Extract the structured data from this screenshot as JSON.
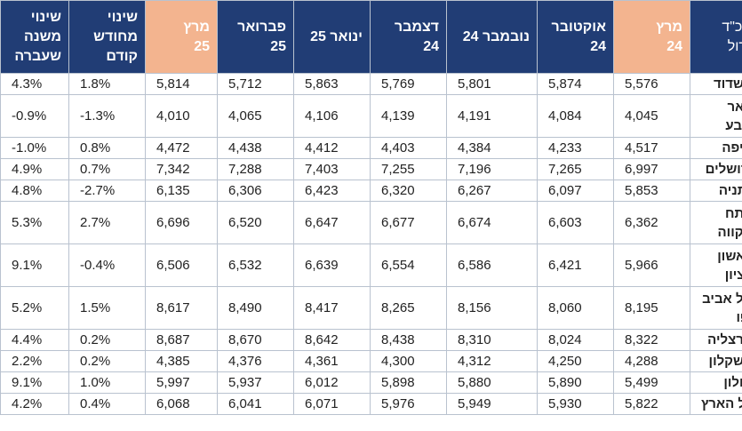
{
  "table": {
    "headers": [
      "שכ\"ד\nגדול",
      "מרץ\n24",
      "אוקטובר\n24",
      "נובמבר 24",
      "דצמבר 24",
      "ינואר 25",
      "פברואר\n25",
      "מרץ\n25",
      "שינוי\nמחודש\nקודם",
      "שינוי\nמשנה\nשעברה"
    ],
    "highlighted_header_color": "#f3b48f",
    "header_color": "#213d75",
    "rows": [
      {
        "city": "אשדוד",
        "values": [
          "5,576",
          "5,874",
          "5,801",
          "5,769",
          "5,863",
          "5,712",
          "5,814",
          "1.8%",
          "4.3%"
        ]
      },
      {
        "city": "באר שבע",
        "values": [
          "4,045",
          "4,084",
          "4,191",
          "4,139",
          "4,106",
          "4,065",
          "4,010",
          "-1.3%",
          "-0.9%"
        ]
      },
      {
        "city": "חיפה",
        "values": [
          "4,517",
          "4,233",
          "4,384",
          "4,403",
          "4,412",
          "4,438",
          "4,472",
          "0.8%",
          "-1.0%"
        ]
      },
      {
        "city": "ירושלים",
        "values": [
          "6,997",
          "7,265",
          "7,196",
          "7,255",
          "7,403",
          "7,288",
          "7,342",
          "0.7%",
          "4.9%"
        ]
      },
      {
        "city": "נתניה",
        "values": [
          "5,853",
          "6,097",
          "6,267",
          "6,320",
          "6,423",
          "6,306",
          "6,135",
          "-2.7%",
          "4.8%"
        ]
      },
      {
        "city": "פתח תקווה",
        "values": [
          "6,362",
          "6,603",
          "6,674",
          "6,677",
          "6,647",
          "6,520",
          "6,696",
          "2.7%",
          "5.3%"
        ]
      },
      {
        "city": "ראשון לציון",
        "values": [
          "5,966",
          "6,421",
          "6,586",
          "6,554",
          "6,639",
          "6,532",
          "6,506",
          "-0.4%",
          "9.1%"
        ]
      },
      {
        "city": "תל אביב יפו",
        "values": [
          "8,195",
          "8,060",
          "8,156",
          "8,265",
          "8,417",
          "8,490",
          "8,617",
          "1.5%",
          "5.2%"
        ]
      },
      {
        "city": "הרצליה",
        "values": [
          "8,322",
          "8,024",
          "8,310",
          "8,438",
          "8,642",
          "8,670",
          "8,687",
          "0.2%",
          "4.4%"
        ]
      },
      {
        "city": "אשקלון",
        "values": [
          "4,288",
          "4,250",
          "4,312",
          "4,300",
          "4,361",
          "4,376",
          "4,385",
          "0.2%",
          "2.2%"
        ]
      },
      {
        "city": "חולון",
        "values": [
          "5,499",
          "5,890",
          "5,880",
          "5,898",
          "6,012",
          "5,937",
          "5,997",
          "1.0%",
          "9.1%"
        ]
      },
      {
        "city": "כל הארץ",
        "values": [
          "5,822",
          "5,930",
          "5,949",
          "5,976",
          "6,071",
          "6,041",
          "6,068",
          "0.4%",
          "4.2%"
        ]
      }
    ]
  }
}
